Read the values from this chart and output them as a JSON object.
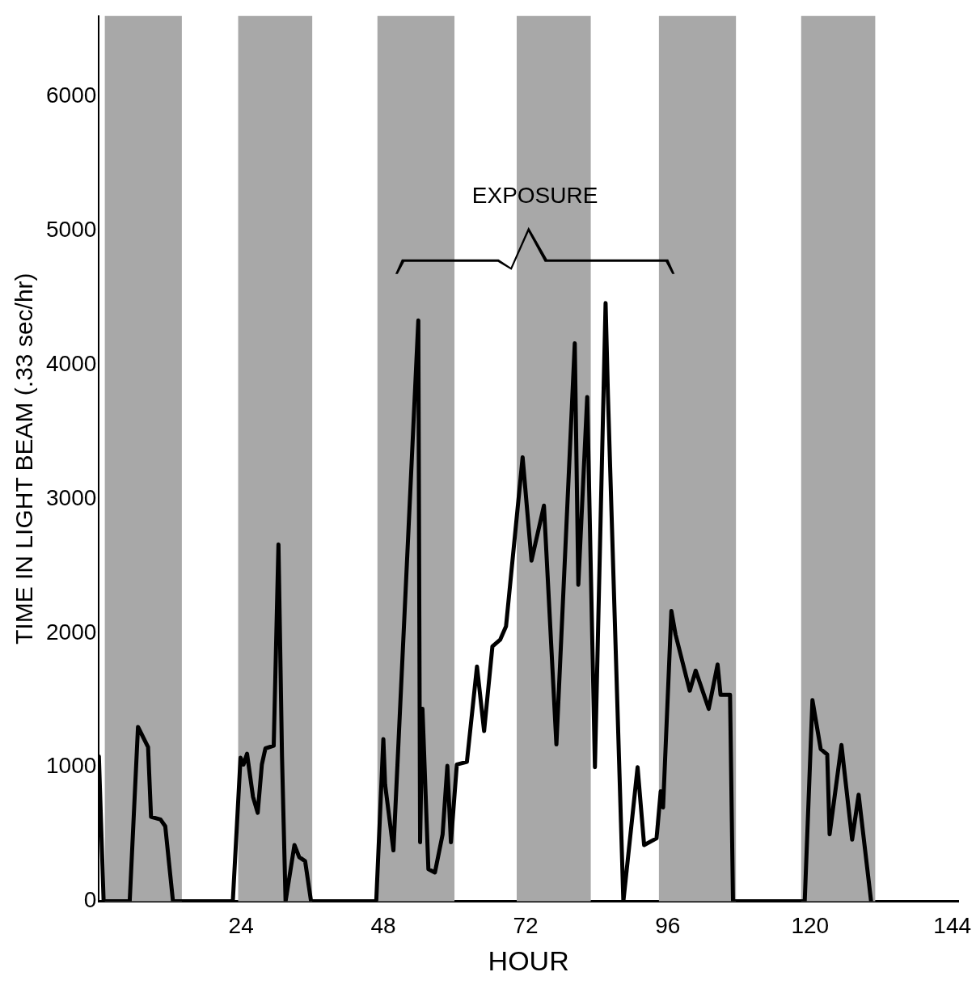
{
  "chart_data": {
    "type": "line",
    "xlabel": "HOUR",
    "ylabel": "TIME IN LIGHT BEAM (.33 sec/hr)",
    "series": [
      {
        "color": "#000000",
        "x": [
          0,
          0.8,
          5.2,
          6.6,
          8.3,
          8.8,
          10.4,
          11.2,
          12.5,
          22.6,
          23.9,
          24.4,
          25,
          26,
          26.8,
          27.5,
          28.1,
          29.5,
          30.3,
          30.9,
          31.5,
          33,
          33.8,
          34.8,
          35.8,
          46.8,
          48,
          48.3,
          49.7,
          53.9,
          54.2,
          54.6,
          55.6,
          56.7,
          58,
          58.8,
          59.4,
          60.4,
          62.1,
          63.8,
          65,
          66.4,
          67.7,
          68.7,
          71.5,
          73,
          75.1,
          77.2,
          80.3,
          80.9,
          82.4,
          83.7,
          85.5,
          85.9,
          88.5,
          90.9,
          92,
          94.1,
          94.8,
          95.2,
          96.6,
          97.3,
          99.7,
          100.7,
          102.9,
          104.4,
          104.9,
          106.5,
          107,
          119.1,
          120.4,
          121.8,
          122.9,
          123.3,
          125.3,
          127.1,
          128.2,
          130.3
        ],
        "values": [
          1080,
          0,
          0,
          1300,
          1150,
          630,
          610,
          560,
          0,
          0,
          1070,
          1020,
          1100,
          780,
          660,
          1020,
          1140,
          1160,
          2660,
          1080,
          0,
          420,
          330,
          300,
          0,
          0,
          1210,
          870,
          380,
          4330,
          440,
          1435,
          240,
          215,
          500,
          1010,
          440,
          1020,
          1040,
          1750,
          1270,
          1900,
          1950,
          2050,
          3310,
          2540,
          2950,
          1170,
          4160,
          2360,
          3760,
          1000,
          4460,
          3770,
          0,
          1000,
          420,
          470,
          820,
          700,
          2165,
          1990,
          1570,
          1720,
          1435,
          1765,
          1540,
          1540,
          0,
          0,
          1500,
          1135,
          1095,
          500,
          1165,
          460,
          795,
          0
        ]
      }
    ],
    "xlim": [
      0,
      145
    ],
    "ylim": [
      0,
      6600
    ],
    "xticks": [
      24,
      48,
      72,
      96,
      120,
      144
    ],
    "yticks": [
      0,
      1000,
      2000,
      3000,
      4000,
      5000,
      6000
    ],
    "grid": false,
    "legend": false,
    "marker": "none",
    "line_style": "solid",
    "bands": [
      {
        "axis": "x",
        "from": 1,
        "to": 14,
        "color": "#a8a8a8"
      },
      {
        "axis": "x",
        "from": 23.5,
        "to": 36,
        "color": "#a8a8a8"
      },
      {
        "axis": "x",
        "from": 47,
        "to": 60,
        "color": "#a8a8a8"
      },
      {
        "axis": "x",
        "from": 70.5,
        "to": 83,
        "color": "#a8a8a8"
      },
      {
        "axis": "x",
        "from": 94.5,
        "to": 107.5,
        "color": "#a8a8a8"
      },
      {
        "axis": "x",
        "from": 118.5,
        "to": 131,
        "color": "#a8a8a8"
      }
    ],
    "annotations": [
      "EXPOSURE"
    ]
  }
}
